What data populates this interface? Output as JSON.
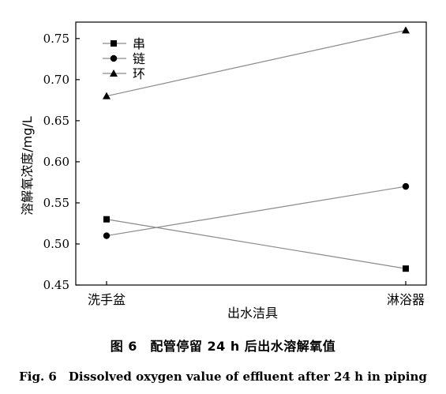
{
  "chart_data": {
    "type": "line",
    "categories": [
      "洗手盆",
      "淋浴器"
    ],
    "series": [
      {
        "name": "串",
        "marker": "square",
        "values": [
          0.53,
          0.47
        ]
      },
      {
        "name": "链",
        "marker": "circle",
        "values": [
          0.51,
          0.57
        ]
      },
      {
        "name": "环",
        "marker": "triangle",
        "values": [
          0.68,
          0.76
        ]
      }
    ],
    "ylim": [
      0.45,
      0.77
    ],
    "yticks": [
      "0.45",
      "0.50",
      "0.55",
      "0.60",
      "0.65",
      "0.70",
      "0.75"
    ],
    "ytick_values": [
      0.45,
      0.5,
      0.55,
      0.6,
      0.65,
      0.7,
      0.75
    ],
    "xlabel": "出水洁具",
    "ylabel": "溶解氧浓度/mg/L",
    "legend_position": "top-left",
    "grid": false,
    "line_color": "#8a8a8a",
    "marker_color": "#000000"
  },
  "caption": {
    "chinese": "图 6　配管停留 24 h 后出水溶解氧值",
    "english": "Fig. 6　Dissolved oxygen value of effluent after 24 h in piping"
  }
}
